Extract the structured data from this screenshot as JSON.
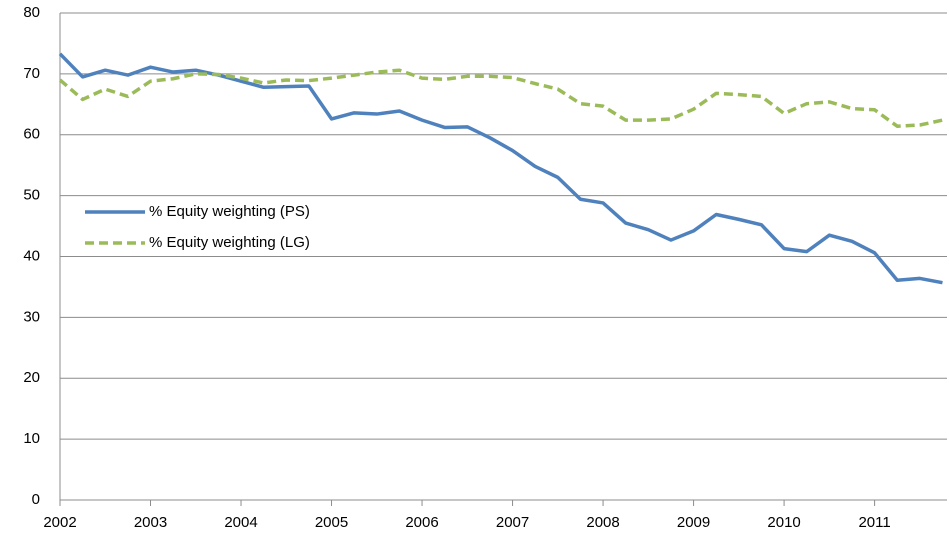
{
  "chart_data": {
    "type": "line",
    "x": [
      2002,
      2002.25,
      2002.5,
      2002.75,
      2003,
      2003.25,
      2003.5,
      2003.75,
      2004,
      2004.25,
      2004.5,
      2004.75,
      2005,
      2005.25,
      2005.5,
      2005.75,
      2006,
      2006.25,
      2006.5,
      2006.75,
      2007,
      2007.25,
      2007.5,
      2007.75,
      2008,
      2008.25,
      2008.5,
      2008.75,
      2009,
      2009.25,
      2009.5,
      2009.75,
      2010,
      2010.25,
      2010.5,
      2010.75,
      2011,
      2011.25,
      2011.5,
      2011.75
    ],
    "series": [
      {
        "name": "% Equity weighting (PS)",
        "color": "#4f81bd",
        "style": "solid",
        "values": [
          73.3,
          69.5,
          70.6,
          69.8,
          71.1,
          70.3,
          70.6,
          69.8,
          68.8,
          67.8,
          67.9,
          68.0,
          62.6,
          63.6,
          63.4,
          63.9,
          62.4,
          61.2,
          61.3,
          59.5,
          57.4,
          54.8,
          53.0,
          49.4,
          48.8,
          45.5,
          44.4,
          42.7,
          44.2,
          46.9,
          46.1,
          45.2,
          41.3,
          40.8,
          43.5,
          42.5,
          40.6,
          36.1,
          36.4,
          35.7
        ]
      },
      {
        "name": "% Equity weighting (LG)",
        "color": "#9bbb59",
        "style": "dashed",
        "values": [
          69.0,
          65.8,
          67.5,
          66.3,
          68.8,
          69.2,
          70.0,
          69.9,
          69.3,
          68.5,
          69.0,
          68.9,
          69.3,
          69.8,
          70.3,
          70.6,
          69.3,
          69.1,
          69.6,
          69.6,
          69.4,
          68.4,
          67.5,
          65.1,
          64.7,
          62.4,
          62.4,
          62.6,
          64.2,
          66.8,
          66.6,
          66.3,
          63.5,
          65.1,
          65.4,
          64.3,
          64.1,
          61.4,
          61.6,
          62.4
        ]
      }
    ],
    "xlim": [
      2002,
      2011.8
    ],
    "xticks": [
      2002,
      2003,
      2004,
      2005,
      2006,
      2007,
      2008,
      2009,
      2010,
      2011
    ],
    "ylim": [
      0,
      80
    ],
    "yticks": [
      0,
      10,
      20,
      30,
      40,
      50,
      60,
      70,
      80
    ],
    "grid": true,
    "legend": "left"
  }
}
